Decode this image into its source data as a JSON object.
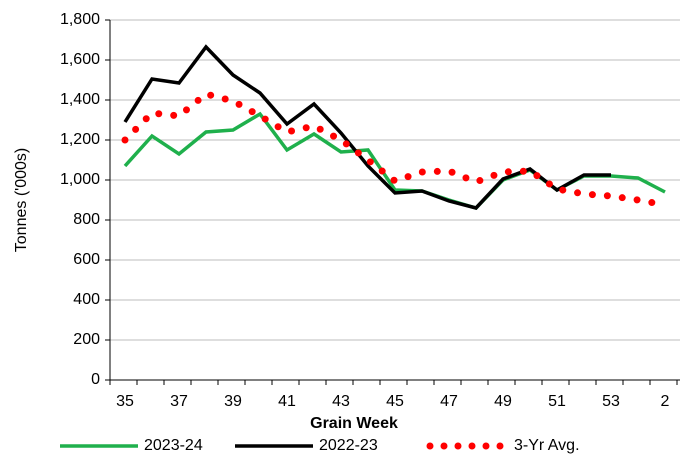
{
  "chart_data": {
    "type": "line",
    "y_label": "Tonnes ('000s)",
    "x_label": "Grain Week",
    "categories": [
      35,
      null,
      37,
      null,
      39,
      null,
      41,
      null,
      43,
      null,
      45,
      null,
      47,
      null,
      49,
      null,
      51,
      null,
      53,
      null,
      2
    ],
    "series": [
      {
        "name": "2023-24",
        "color": "#1fb04c",
        "style": "solid",
        "values": [
          1070,
          1220,
          1130,
          1240,
          1250,
          1330,
          1150,
          1230,
          1140,
          1150,
          950,
          945,
          900,
          860,
          1000,
          1050,
          950,
          1020,
          1020,
          1010,
          940
        ]
      },
      {
        "name": "2022-23",
        "color": "#000000",
        "style": "solid",
        "values": [
          1290,
          1505,
          1485,
          1665,
          1525,
          1435,
          1280,
          1380,
          1235,
          1070,
          935,
          945,
          895,
          860,
          1005,
          1055,
          950,
          1025,
          1025,
          null,
          null
        ]
      },
      {
        "name": "3-Yr Avg.",
        "color": "#ff0000",
        "style": "dotted",
        "values": [
          1200,
          1335,
          1320,
          1430,
          1395,
          1320,
          1240,
          1270,
          1200,
          1100,
          995,
          1040,
          1045,
          990,
          1040,
          1045,
          955,
          930,
          920,
          900,
          875
        ]
      }
    ],
    "ylim": [
      0,
      1800
    ],
    "yticks": [
      0,
      200,
      400,
      600,
      800,
      {
        "value": 1000,
        "label": "1,000"
      },
      {
        "value": 1200,
        "label": "1,200"
      },
      {
        "value": 1400,
        "label": "1,400"
      },
      {
        "value": 1600,
        "label": "1,600"
      },
      {
        "value": 1800,
        "label": "1,800"
      }
    ],
    "grid": true,
    "legend": "bottom"
  }
}
